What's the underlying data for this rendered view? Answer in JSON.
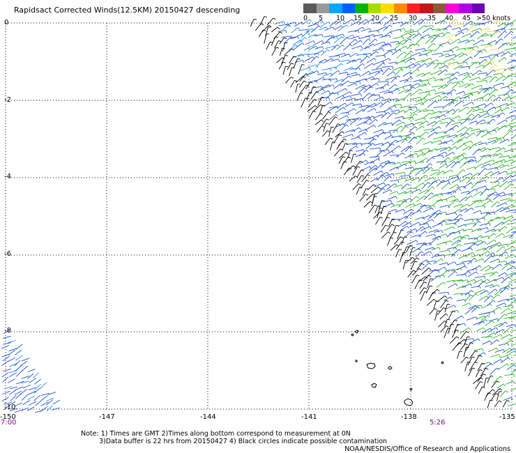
{
  "title": "Rapidsact Corrected Winds(12.5KM) 20150427 descending",
  "legend": {
    "labels": [
      "0",
      "5",
      "10",
      "15",
      "20",
      "25",
      "30",
      "35",
      "40",
      "45",
      ">50 knots"
    ],
    "colors": [
      "#5a5a5a",
      "#9a9a9a",
      "#00a7ff",
      "#0060ff",
      "#00b400",
      "#a8dc00",
      "#ffdd00",
      "#ff8a00",
      "#ff2020",
      "#c01818",
      "#8a5a3a",
      "#ff00d8",
      "#b000e8",
      "#6b00b8"
    ]
  },
  "axes": {
    "x_ticks": [
      "-150",
      "-147",
      "-144",
      "-141",
      "-138",
      "-135"
    ],
    "y_ticks": [
      "0",
      "-2",
      "-4",
      "-6",
      "-8",
      "-10"
    ]
  },
  "times": {
    "left": "7:00",
    "right": "5:26"
  },
  "notes": {
    "line1": "Note: 1) Times are GMT 2)Times along bottom correspond to measurement at 0N",
    "line2": "3)Data buffer is 22 hrs from 20150427 4) Black circles indicate possible contamination"
  },
  "credit": "NOAA/NESDIS/Office of Research and Applications",
  "colors": {
    "wind_blue": "#1f4fd6",
    "wind_lightblue": "#1a8cf0",
    "wind_green": "#22b022",
    "wind_yellow": "#e8d23a",
    "flag_black": "#000000",
    "grid": "#000000"
  }
}
